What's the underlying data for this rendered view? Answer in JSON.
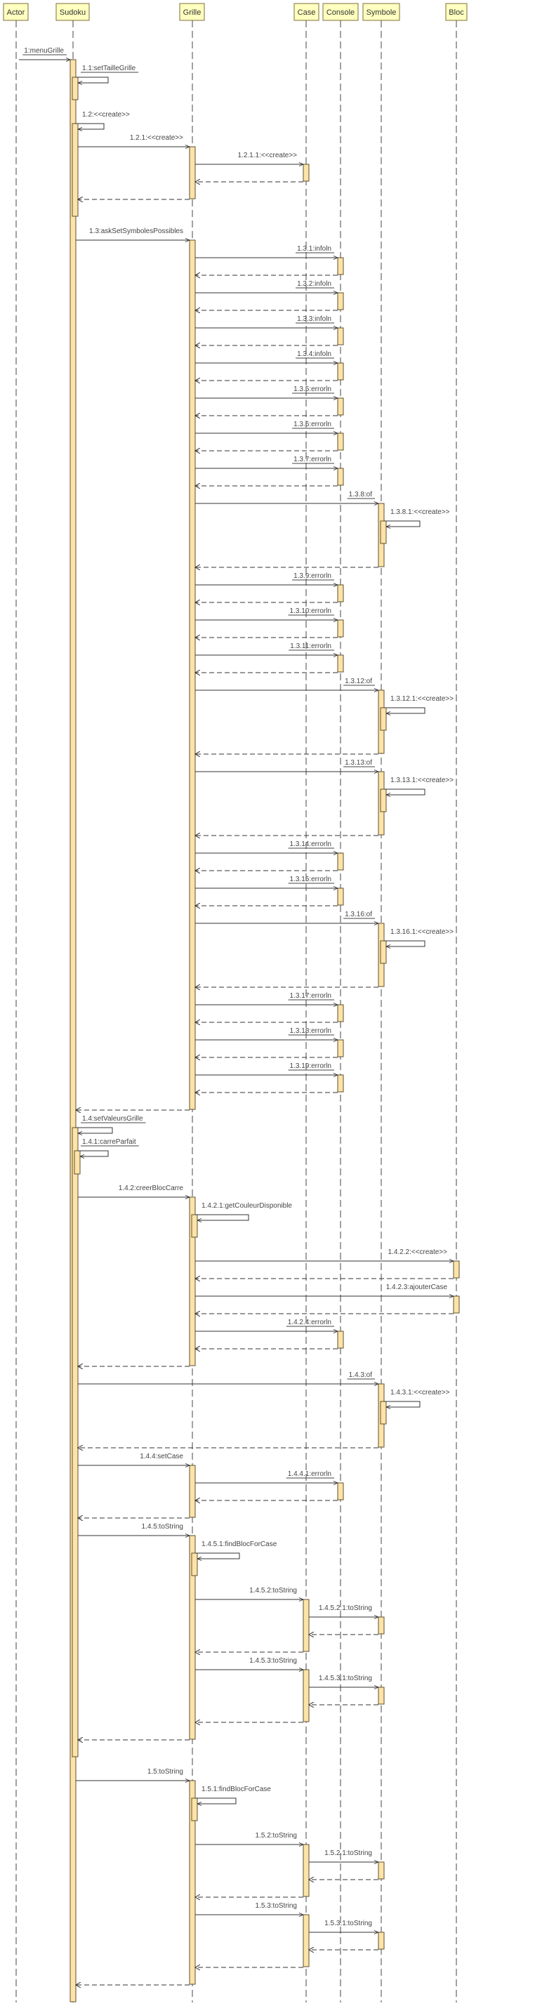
{
  "diagram_type": "sequence",
  "colors": {
    "participant_fill": "#ffffc0",
    "activation_fill": "#fde3a7",
    "line": "#333333"
  },
  "participants": [
    {
      "id": "A",
      "name": "Actor"
    },
    {
      "id": "S",
      "name": "Sudoku"
    },
    {
      "id": "G",
      "name": "Grille"
    },
    {
      "id": "Ca",
      "name": "Case"
    },
    {
      "id": "Co",
      "name": "Console"
    },
    {
      "id": "Sy",
      "name": "Symbole"
    },
    {
      "id": "B",
      "name": "Bloc"
    }
  ],
  "messages": [
    {
      "label": "1:menuGrille",
      "from": "A",
      "to": "S",
      "underlined": true
    },
    {
      "label": "1.1:setTailleGrille",
      "from": "S",
      "to": "S",
      "underlined": true
    },
    {
      "label": "1.2:<<create>>",
      "from": "S",
      "to": "S"
    },
    {
      "label": "1.2.1:<<create>>",
      "from": "S",
      "to": "G"
    },
    {
      "label": "1.2.1.1:<<create>>",
      "from": "G",
      "to": "Ca"
    },
    {
      "label": "1.3:askSetSymbolesPossibles",
      "from": "S",
      "to": "G"
    },
    {
      "label": "1.3.1:infoln",
      "from": "G",
      "to": "Co",
      "underlined": true
    },
    {
      "label": "1.3.2:infoln",
      "from": "G",
      "to": "Co",
      "underlined": true
    },
    {
      "label": "1.3.3:infoln",
      "from": "G",
      "to": "Co",
      "underlined": true
    },
    {
      "label": "1.3.4:infoln",
      "from": "G",
      "to": "Co",
      "underlined": true
    },
    {
      "label": "1.3.5:errorln",
      "from": "G",
      "to": "Co",
      "underlined": true
    },
    {
      "label": "1.3.6:errorln",
      "from": "G",
      "to": "Co",
      "underlined": true
    },
    {
      "label": "1.3.7:errorln",
      "from": "G",
      "to": "Co",
      "underlined": true
    },
    {
      "label": "1.3.8:of",
      "from": "G",
      "to": "Sy",
      "underlined": true
    },
    {
      "label": "1.3.8.1:<<create>>",
      "from": "Sy",
      "to": "Sy"
    },
    {
      "label": "1.3.9:errorln",
      "from": "G",
      "to": "Co",
      "underlined": true
    },
    {
      "label": "1.3.10:errorln",
      "from": "G",
      "to": "Co",
      "underlined": true
    },
    {
      "label": "1.3.11:errorln",
      "from": "G",
      "to": "Co",
      "underlined": true
    },
    {
      "label": "1.3.12:of",
      "from": "G",
      "to": "Sy",
      "underlined": true
    },
    {
      "label": "1.3.12.1:<<create>>",
      "from": "Sy",
      "to": "Sy"
    },
    {
      "label": "1.3.13:of",
      "from": "G",
      "to": "Sy",
      "underlined": true
    },
    {
      "label": "1.3.13.1:<<create>>",
      "from": "Sy",
      "to": "Sy"
    },
    {
      "label": "1.3.14:errorln",
      "from": "G",
      "to": "Co",
      "underlined": true
    },
    {
      "label": "1.3.15:errorln",
      "from": "G",
      "to": "Co",
      "underlined": true
    },
    {
      "label": "1.3.16:of",
      "from": "G",
      "to": "Sy",
      "underlined": true
    },
    {
      "label": "1.3.16.1:<<create>>",
      "from": "Sy",
      "to": "Sy"
    },
    {
      "label": "1.3.17:errorln",
      "from": "G",
      "to": "Co",
      "underlined": true
    },
    {
      "label": "1.3.18:errorln",
      "from": "G",
      "to": "Co",
      "underlined": true
    },
    {
      "label": "1.3.19:errorln",
      "from": "G",
      "to": "Co",
      "underlined": true
    },
    {
      "label": "1.4:setValeursGrille",
      "from": "S",
      "to": "S",
      "underlined": true
    },
    {
      "label": "1.4.1:carreParfait",
      "from": "S",
      "to": "S",
      "underlined": true
    },
    {
      "label": "1.4.2:creerBlocCarre",
      "from": "S",
      "to": "G"
    },
    {
      "label": "1.4.2.1:getCouleurDisponible",
      "from": "G",
      "to": "G"
    },
    {
      "label": "1.4.2.2:<<create>>",
      "from": "G",
      "to": "B"
    },
    {
      "label": "1.4.2.3:ajouterCase",
      "from": "G",
      "to": "B"
    },
    {
      "label": "1.4.2.4:errorln",
      "from": "G",
      "to": "Co",
      "underlined": true
    },
    {
      "label": "1.4.3:of",
      "from": "S",
      "to": "Sy",
      "underlined": true
    },
    {
      "label": "1.4.3.1:<<create>>",
      "from": "Sy",
      "to": "Sy"
    },
    {
      "label": "1.4.4:setCase",
      "from": "S",
      "to": "G"
    },
    {
      "label": "1.4.4.1:errorln",
      "from": "G",
      "to": "Co",
      "underlined": true
    },
    {
      "label": "1.4.5:toString",
      "from": "S",
      "to": "G"
    },
    {
      "label": "1.4.5.1:findBlocForCase",
      "from": "G",
      "to": "G"
    },
    {
      "label": "1.4.5.2:toString",
      "from": "G",
      "to": "Ca"
    },
    {
      "label": "1.4.5.2.1:toString",
      "from": "Ca",
      "to": "Sy"
    },
    {
      "label": "1.4.5.3:toString",
      "from": "G",
      "to": "Ca"
    },
    {
      "label": "1.4.5.3.1:toString",
      "from": "Ca",
      "to": "Sy"
    },
    {
      "label": "1.5:toString",
      "from": "S",
      "to": "G"
    },
    {
      "label": "1.5.1:findBlocForCase",
      "from": "G",
      "to": "G"
    },
    {
      "label": "1.5.2:toString",
      "from": "G",
      "to": "Ca"
    },
    {
      "label": "1.5.2.1:toString",
      "from": "Ca",
      "to": "Sy"
    },
    {
      "label": "1.5.3:toString",
      "from": "G",
      "to": "Ca"
    },
    {
      "label": "1.5.3.1:toString",
      "from": "Ca",
      "to": "Sy"
    }
  ]
}
